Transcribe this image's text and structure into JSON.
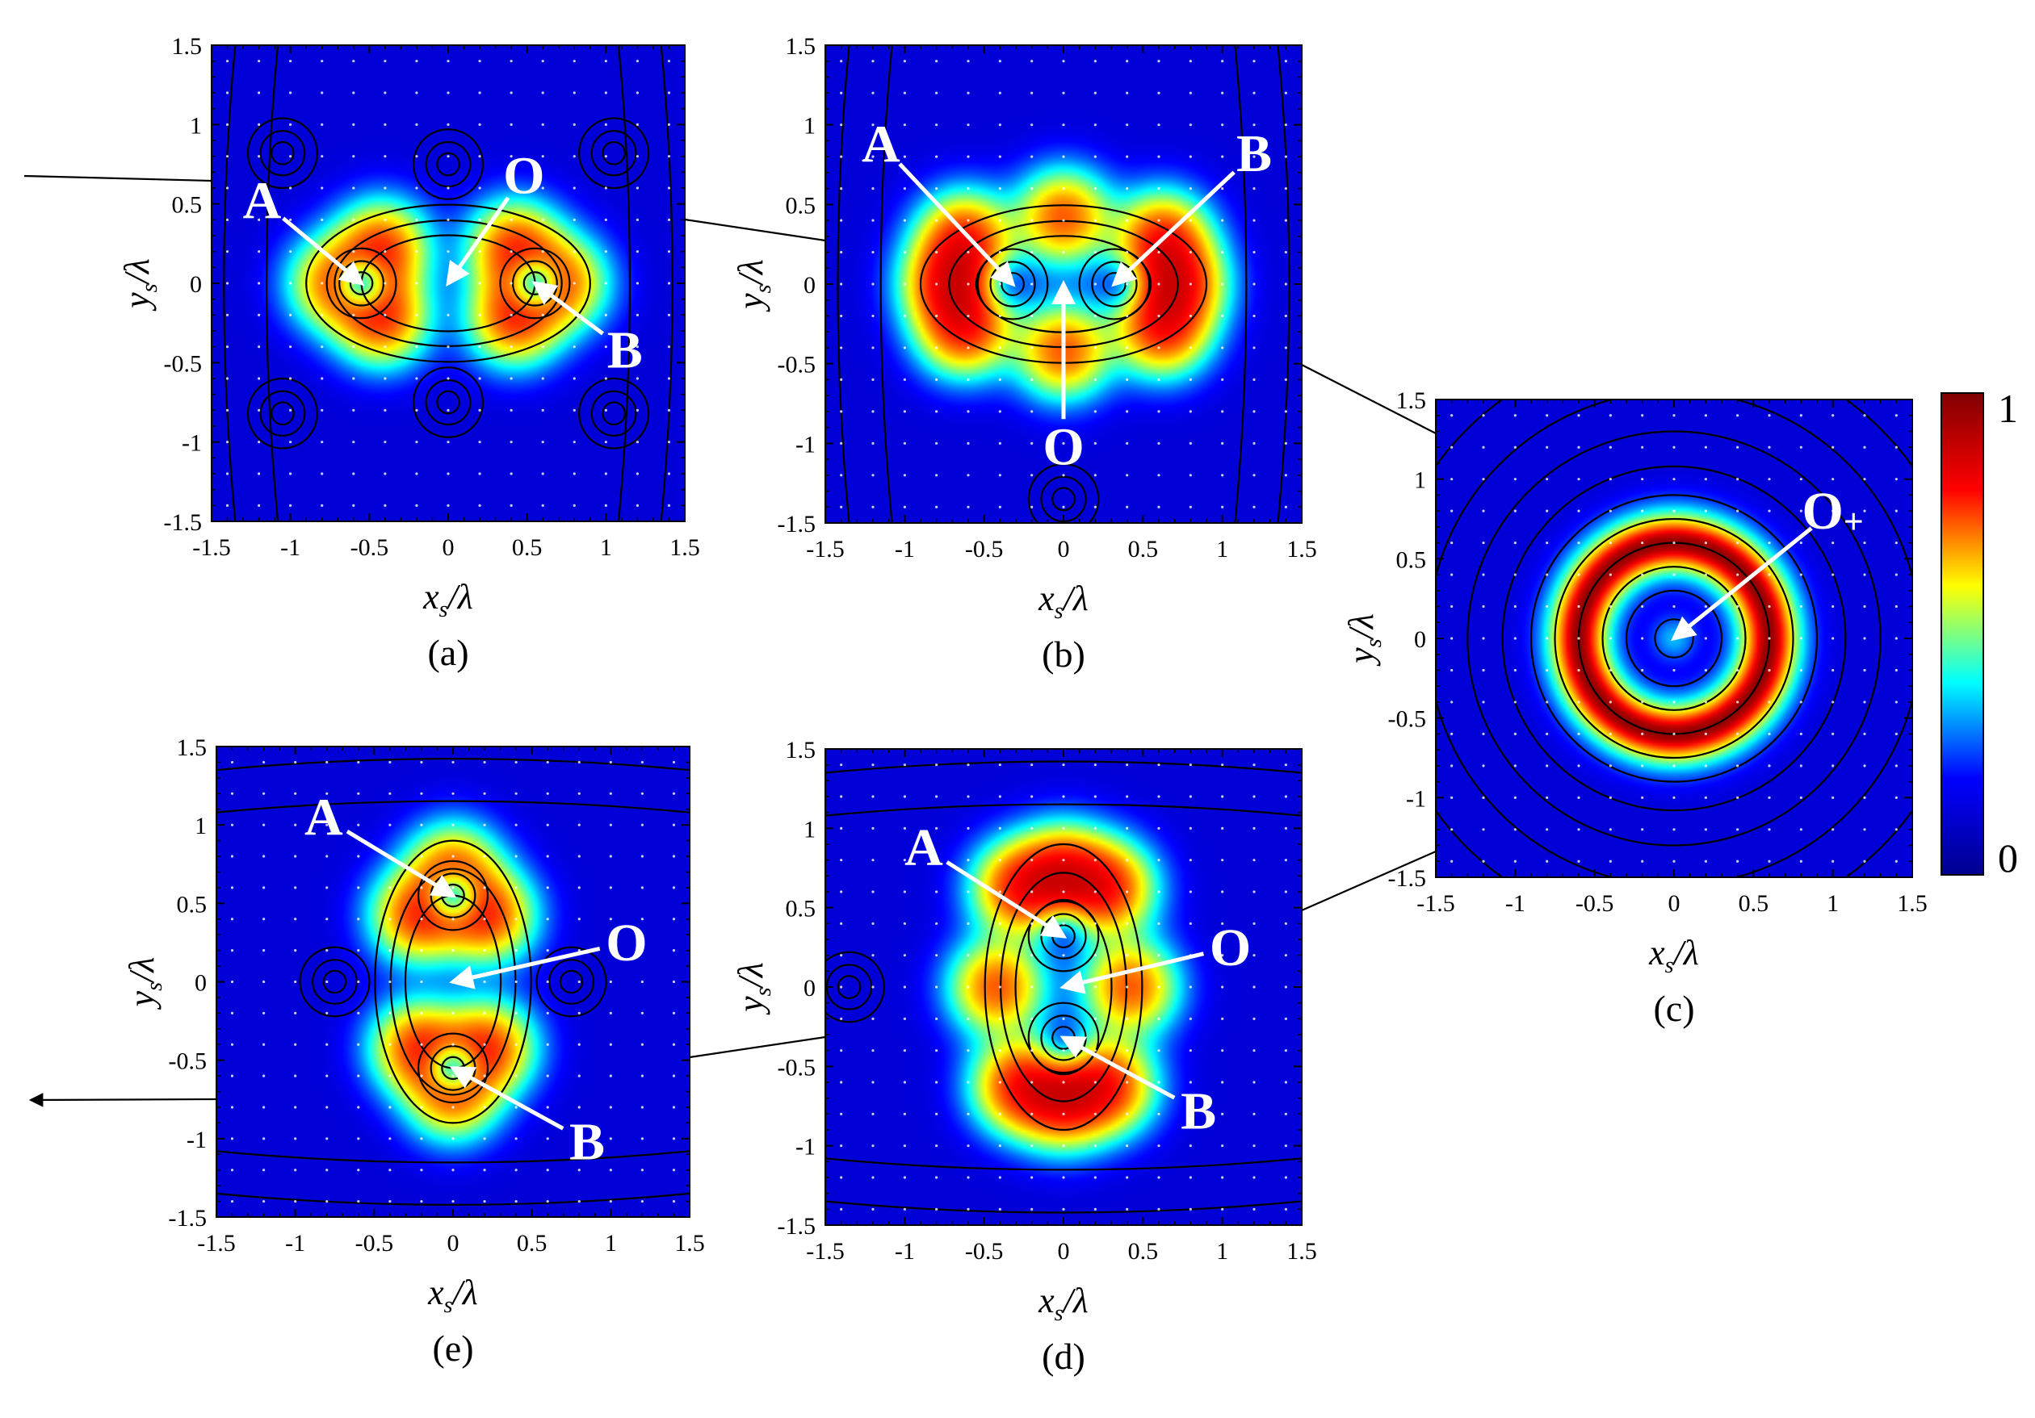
{
  "chart_data": [
    {
      "panel": "a",
      "type": "heatmap",
      "caption": "(a)",
      "xlabel": "x_s/λ",
      "ylabel": "y_s/λ",
      "xlim": [
        -1.5,
        1.5
      ],
      "ylim": [
        -1.5,
        1.5
      ],
      "xticks": [
        "-1.5",
        "-1",
        "-0.5",
        "0",
        "0.5",
        "1",
        "1.5"
      ],
      "yticks": [
        "1.5",
        "1",
        "0.5",
        "0",
        "-0.5",
        "-1",
        "-1.5"
      ],
      "field_peaks": [
        {
          "x": -0.42,
          "y": 0.22,
          "a": 0.9
        },
        {
          "x": 0.42,
          "y": 0.22,
          "a": 0.9
        },
        {
          "x": -0.42,
          "y": -0.22,
          "a": 0.9
        },
        {
          "x": 0.42,
          "y": -0.22,
          "a": 0.9
        },
        {
          "x": -0.72,
          "y": 0.0,
          "a": 0.75
        },
        {
          "x": 0.72,
          "y": 0.0,
          "a": 0.75
        }
      ],
      "points": [
        {
          "label": "A",
          "x": -0.55,
          "y": 0.0,
          "label_x": -1.18,
          "label_y": 0.52
        },
        {
          "label": "O",
          "x": 0.0,
          "y": 0.0,
          "label_x": 0.48,
          "label_y": 0.68
        },
        {
          "label": "B",
          "x": 0.55,
          "y": 0.0,
          "label_x": 1.12,
          "label_y": -0.42
        }
      ],
      "vortices": [
        [
          -0.55,
          0.0
        ],
        [
          0.55,
          0.0
        ],
        [
          0.0,
          0.75
        ],
        [
          0.0,
          -0.75
        ],
        [
          -1.05,
          0.82
        ],
        [
          1.05,
          0.82
        ],
        [
          -1.05,
          -0.82
        ],
        [
          1.05,
          -0.82
        ]
      ]
    },
    {
      "panel": "b",
      "type": "heatmap",
      "caption": "(b)",
      "xlabel": "x_s/λ",
      "ylabel": "y_s/λ",
      "xlim": [
        -1.5,
        1.5
      ],
      "ylim": [
        -1.5,
        1.5
      ],
      "xticks": [
        "-1.5",
        "-1",
        "-0.5",
        "0",
        "0.5",
        "1",
        "1.5"
      ],
      "yticks": [
        "1.5",
        "1",
        "0.5",
        "0",
        "-0.5",
        "-1",
        "-1.5"
      ],
      "field_peaks": [
        {
          "x": -0.62,
          "y": 0.28,
          "a": 0.95
        },
        {
          "x": 0.62,
          "y": 0.28,
          "a": 0.95
        },
        {
          "x": -0.62,
          "y": -0.28,
          "a": 0.95
        },
        {
          "x": 0.62,
          "y": -0.28,
          "a": 0.95
        },
        {
          "x": 0.0,
          "y": 0.42,
          "a": 0.85
        },
        {
          "x": 0.0,
          "y": -0.42,
          "a": 0.85
        },
        {
          "x": -0.72,
          "y": 0.0,
          "a": 0.95
        },
        {
          "x": 0.72,
          "y": 0.0,
          "a": 0.95
        }
      ],
      "points": [
        {
          "label": "A",
          "x": -0.32,
          "y": 0.0,
          "label_x": -1.15,
          "label_y": 0.88
        },
        {
          "label": "B",
          "x": 0.32,
          "y": 0.0,
          "label_x": 1.2,
          "label_y": 0.82
        },
        {
          "label": "O",
          "x": 0.0,
          "y": 0.0,
          "label_x": 0.0,
          "label_y": -1.02
        }
      ],
      "vortices": [
        [
          -0.32,
          0.0
        ],
        [
          0.32,
          0.0
        ],
        [
          0.0,
          -1.35
        ]
      ]
    },
    {
      "panel": "c",
      "type": "heatmap",
      "caption": "(c)",
      "xlabel": "x_s/λ",
      "ylabel": "y_s/λ",
      "xlim": [
        -1.5,
        1.5
      ],
      "ylim": [
        -1.5,
        1.5
      ],
      "xticks": [
        "-1.5",
        "-1",
        "-0.5",
        "0",
        "0.5",
        "1",
        "1.5"
      ],
      "yticks": [
        "1.5",
        "1",
        "0.5",
        "0",
        "-0.5",
        "-1",
        "-1.5"
      ],
      "ring_radius": 0.6,
      "points": [
        {
          "label": "O+",
          "x": 0.0,
          "y": 0.0,
          "label_x": 1.0,
          "label_y": 0.8
        }
      ],
      "vortices": [
        [
          0.0,
          0.0
        ]
      ]
    },
    {
      "panel": "d",
      "type": "heatmap",
      "caption": "(d)",
      "xlabel": "x_s/λ",
      "ylabel": "y_s/λ",
      "xlim": [
        -1.5,
        1.5
      ],
      "ylim": [
        -1.5,
        1.5
      ],
      "xticks": [
        "-1.5",
        "-1",
        "-0.5",
        "0",
        "0.5",
        "1",
        "1.5"
      ],
      "yticks": [
        "1.5",
        "1",
        "0.5",
        "0",
        "-0.5",
        "-1",
        "-1.5"
      ],
      "field_peaks": [
        {
          "x": -0.28,
          "y": 0.62,
          "a": 0.95
        },
        {
          "x": 0.28,
          "y": 0.62,
          "a": 0.95
        },
        {
          "x": -0.28,
          "y": -0.62,
          "a": 0.95
        },
        {
          "x": 0.28,
          "y": -0.62,
          "a": 0.95
        },
        {
          "x": 0.42,
          "y": 0.0,
          "a": 0.85
        },
        {
          "x": -0.42,
          "y": 0.0,
          "a": 0.85
        },
        {
          "x": 0.0,
          "y": 0.72,
          "a": 0.95
        },
        {
          "x": 0.0,
          "y": -0.72,
          "a": 0.95
        }
      ],
      "points": [
        {
          "label": "A",
          "x": 0.0,
          "y": 0.32,
          "label_x": -0.88,
          "label_y": 0.88
        },
        {
          "label": "O",
          "x": 0.0,
          "y": 0.0,
          "label_x": 1.05,
          "label_y": 0.25
        },
        {
          "label": "B",
          "x": 0.0,
          "y": -0.32,
          "label_x": 0.85,
          "label_y": -0.78
        }
      ],
      "vortices": [
        [
          0.0,
          0.32
        ],
        [
          0.0,
          -0.32
        ],
        [
          -1.35,
          0.0
        ]
      ]
    },
    {
      "panel": "e",
      "type": "heatmap",
      "caption": "(e)",
      "xlabel": "x_s/λ",
      "ylabel": "y_s/λ",
      "xlim": [
        -1.5,
        1.5
      ],
      "ylim": [
        -1.5,
        1.5
      ],
      "xticks": [
        "-1.5",
        "-1",
        "-0.5",
        "0",
        "0.5",
        "1",
        "1.5"
      ],
      "yticks": [
        "1.5",
        "1",
        "0.5",
        "0",
        "-0.5",
        "-1",
        "-1.5"
      ],
      "field_peaks": [
        {
          "x": 0.22,
          "y": 0.42,
          "a": 0.9
        },
        {
          "x": -0.22,
          "y": 0.42,
          "a": 0.9
        },
        {
          "x": 0.22,
          "y": -0.42,
          "a": 0.9
        },
        {
          "x": -0.22,
          "y": -0.42,
          "a": 0.9
        },
        {
          "x": 0.0,
          "y": 0.72,
          "a": 0.75
        },
        {
          "x": 0.0,
          "y": -0.72,
          "a": 0.75
        }
      ],
      "points": [
        {
          "label": "A",
          "x": 0.0,
          "y": 0.55,
          "label_x": -0.82,
          "label_y": 1.05
        },
        {
          "label": "O",
          "x": 0.0,
          "y": 0.0,
          "label_x": 1.1,
          "label_y": 0.25
        },
        {
          "label": "B",
          "x": 0.0,
          "y": -0.55,
          "label_x": 0.85,
          "label_y": -1.02
        }
      ],
      "vortices": [
        [
          0.0,
          0.55
        ],
        [
          0.0,
          -0.55
        ],
        [
          -0.75,
          0.0
        ],
        [
          0.75,
          0.0
        ]
      ]
    }
  ],
  "colorbar": {
    "min_label": "0",
    "max_label": "1",
    "colormap": [
      "#00008f",
      "#0000ff",
      "#00ffff",
      "#ffff00",
      "#ff0000",
      "#800000"
    ]
  }
}
